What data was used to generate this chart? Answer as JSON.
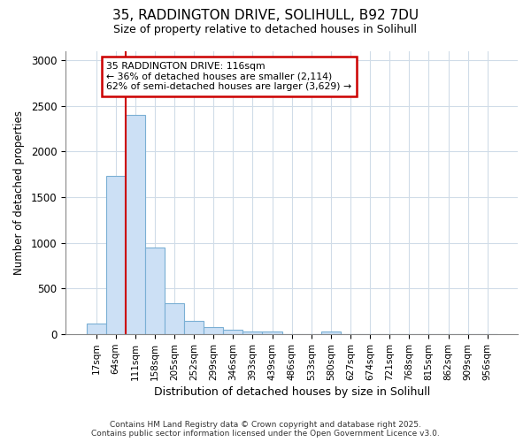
{
  "title_line1": "35, RADDINGTON DRIVE, SOLIHULL, B92 7DU",
  "title_line2": "Size of property relative to detached houses in Solihull",
  "xlabel": "Distribution of detached houses by size in Solihull",
  "ylabel": "Number of detached properties",
  "footer_line1": "Contains HM Land Registry data © Crown copyright and database right 2025.",
  "footer_line2": "Contains public sector information licensed under the Open Government Licence v3.0.",
  "bar_labels": [
    "17sqm",
    "64sqm",
    "111sqm",
    "158sqm",
    "205sqm",
    "252sqm",
    "299sqm",
    "346sqm",
    "393sqm",
    "439sqm",
    "486sqm",
    "533sqm",
    "580sqm",
    "627sqm",
    "674sqm",
    "721sqm",
    "768sqm",
    "815sqm",
    "862sqm",
    "909sqm",
    "956sqm"
  ],
  "bar_values": [
    120,
    1730,
    2400,
    950,
    340,
    150,
    80,
    50,
    30,
    30,
    0,
    0,
    30,
    0,
    0,
    0,
    0,
    0,
    0,
    0,
    0
  ],
  "bar_color": "#cce0f5",
  "bar_edge_color": "#7aafd4",
  "ylim": [
    0,
    3100
  ],
  "yticks": [
    0,
    500,
    1000,
    1500,
    2000,
    2500,
    3000
  ],
  "annotation_title": "35 RADDINGTON DRIVE: 116sqm",
  "annotation_line2": "← 36% of detached houses are smaller (2,114)",
  "annotation_line3": "62% of semi-detached houses are larger (3,629) →",
  "vline_color": "#cc0000",
  "annotation_box_color": "#ffffff",
  "annotation_box_edge": "#cc0000",
  "background_color": "#ffffff",
  "grid_color": "#d0dce8"
}
